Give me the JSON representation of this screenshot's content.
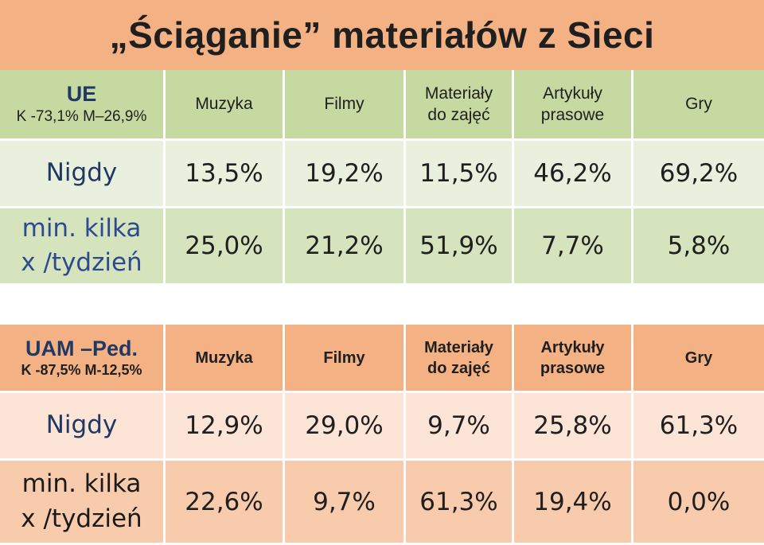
{
  "title": "„Ściąganie” materiałów z Sieci",
  "tables": [
    {
      "group_title": "UE",
      "group_sub": "K -73,1% M–26,9%",
      "columns": [
        "Muzyka",
        "Filmy",
        "Materiały do zajęć",
        "Artykuły prasowe",
        "Gry"
      ],
      "rows": [
        {
          "label": "Nigdy",
          "values": [
            "13,5%",
            "19,2%",
            "11,5%",
            "46,2%",
            "69,2%"
          ]
        },
        {
          "label": "min. kilka x /tydzień",
          "values": [
            "25,0%",
            "21,2%",
            "51,9%",
            "7,7%",
            "5,8%"
          ]
        }
      ]
    },
    {
      "group_title": "UAM –Ped.",
      "group_sub": "K -87,5% M-12,5%",
      "columns": [
        "Muzyka",
        "Filmy",
        "Materiały do zajęć",
        "Artykuły prasowe",
        "Gry"
      ],
      "rows": [
        {
          "label": "Nigdy",
          "values": [
            "12,9%",
            "29,0%",
            "9,7%",
            "25,8%",
            "61,3%"
          ]
        },
        {
          "label": "min. kilka x /tydzień",
          "values": [
            "22,6%",
            "9,7%",
            "61,3%",
            "19,4%",
            "0,0%"
          ]
        }
      ]
    }
  ],
  "colors": {
    "title_bg": "#f4b183",
    "ue_header_bg": "#c5d9a0",
    "ue_row1_bg": "#e9f0de",
    "ue_row2_bg": "#d5e4bd",
    "uam_header_bg": "#f4b183",
    "uam_row1_bg": "#fce4d6",
    "uam_row2_bg": "#f8cbad",
    "label_blue": "#203864"
  }
}
